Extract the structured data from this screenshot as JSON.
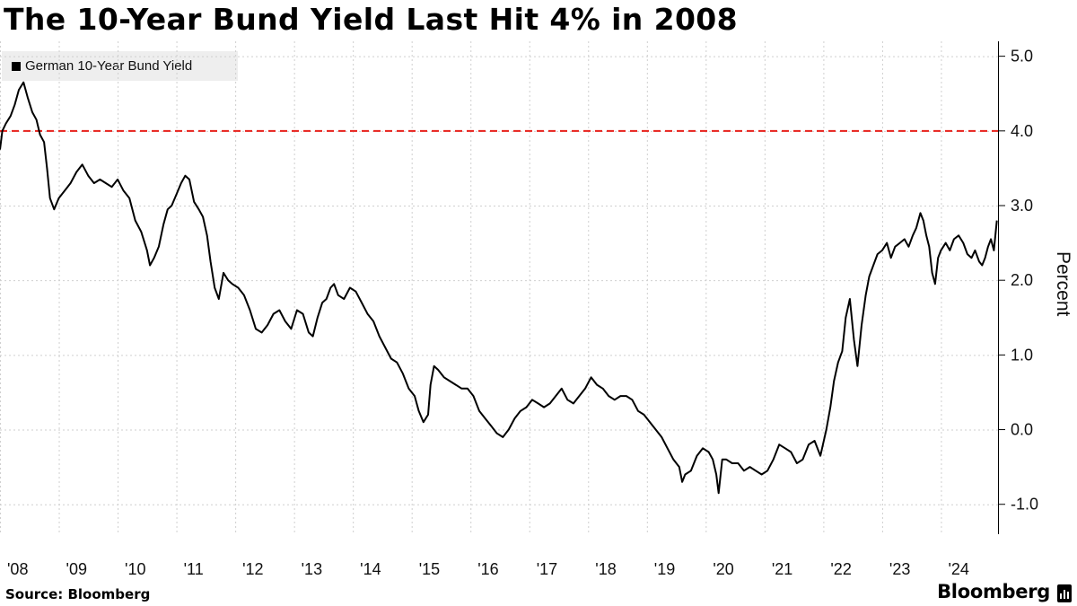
{
  "title": "The 10-Year Bund Yield Last Hit 4% in 2008",
  "legend": {
    "label": "German 10-Year Bund Yield"
  },
  "source": "Source: Bloomberg",
  "brand": "Bloomberg",
  "colors": {
    "line": "#000000",
    "reference_line": "#e8211b",
    "grid": "#cfcfcf"
  },
  "chart_data": {
    "type": "line",
    "title": "The 10-Year Bund Yield Last Hit 4% in 2008",
    "ylabel": "Percent",
    "xlabel": "",
    "ylim": [
      -1.4,
      5.2
    ],
    "yticks": [
      5,
      4,
      3,
      2,
      1,
      0,
      -1
    ],
    "ytick_labels": [
      "5.0",
      "4.0",
      "3.0",
      "2.0",
      "1.0",
      "0.0",
      "-1.0"
    ],
    "xlim": [
      2008.0,
      2024.97
    ],
    "xticks": [
      2008,
      2009,
      2010,
      2011,
      2012,
      2013,
      2014,
      2015,
      2016,
      2017,
      2018,
      2019,
      2020,
      2021,
      2022,
      2023,
      2024
    ],
    "xtick_labels": [
      "'08",
      "'09",
      "'10",
      "'11",
      "'12",
      "'13",
      "'14",
      "'15",
      "'16",
      "'17",
      "'18",
      "'19",
      "'20",
      "'21",
      "'22",
      "'23",
      "'24"
    ],
    "reference_line": {
      "y": 4.0,
      "style": "dashed"
    },
    "grid": true,
    "legend_position": "top-left",
    "series": [
      {
        "name": "German 10-Year Bund Yield",
        "x": [
          2008.0,
          2008.04,
          2008.1,
          2008.18,
          2008.25,
          2008.32,
          2008.4,
          2008.47,
          2008.55,
          2008.62,
          2008.68,
          2008.75,
          2008.8,
          2008.85,
          2008.92,
          2009.0,
          2009.1,
          2009.2,
          2009.3,
          2009.4,
          2009.5,
          2009.6,
          2009.7,
          2009.8,
          2009.9,
          2010.0,
          2010.1,
          2010.2,
          2010.3,
          2010.4,
          2010.5,
          2010.55,
          2010.62,
          2010.7,
          2010.78,
          2010.85,
          2010.92,
          2011.0,
          2011.08,
          2011.15,
          2011.22,
          2011.3,
          2011.38,
          2011.45,
          2011.52,
          2011.58,
          2011.65,
          2011.72,
          2011.8,
          2011.88,
          2011.95,
          2012.05,
          2012.15,
          2012.25,
          2012.35,
          2012.45,
          2012.55,
          2012.65,
          2012.75,
          2012.85,
          2012.95,
          2013.05,
          2013.15,
          2013.25,
          2013.32,
          2013.4,
          2013.48,
          2013.55,
          2013.62,
          2013.68,
          2013.75,
          2013.85,
          2013.95,
          2014.05,
          2014.15,
          2014.25,
          2014.35,
          2014.45,
          2014.55,
          2014.65,
          2014.75,
          2014.85,
          2014.95,
          2015.05,
          2015.12,
          2015.2,
          2015.28,
          2015.32,
          2015.38,
          2015.45,
          2015.55,
          2015.65,
          2015.75,
          2015.85,
          2015.95,
          2016.05,
          2016.15,
          2016.25,
          2016.35,
          2016.45,
          2016.55,
          2016.65,
          2016.75,
          2016.85,
          2016.95,
          2017.05,
          2017.15,
          2017.25,
          2017.35,
          2017.45,
          2017.55,
          2017.65,
          2017.75,
          2017.85,
          2017.95,
          2018.05,
          2018.15,
          2018.25,
          2018.35,
          2018.45,
          2018.55,
          2018.65,
          2018.75,
          2018.85,
          2018.95,
          2019.05,
          2019.15,
          2019.25,
          2019.35,
          2019.45,
          2019.55,
          2019.6,
          2019.65,
          2019.75,
          2019.85,
          2019.95,
          2020.05,
          2020.12,
          2020.18,
          2020.22,
          2020.28,
          2020.35,
          2020.45,
          2020.55,
          2020.65,
          2020.75,
          2020.85,
          2020.95,
          2021.05,
          2021.15,
          2021.25,
          2021.35,
          2021.45,
          2021.55,
          2021.65,
          2021.75,
          2021.85,
          2021.95,
          2022.05,
          2022.12,
          2022.18,
          2022.25,
          2022.32,
          2022.38,
          2022.45,
          2022.52,
          2022.58,
          2022.65,
          2022.72,
          2022.78,
          2022.85,
          2022.92,
          2023.0,
          2023.08,
          2023.15,
          2023.22,
          2023.3,
          2023.38,
          2023.45,
          2023.52,
          2023.58,
          2023.65,
          2023.7,
          2023.75,
          2023.8,
          2023.85,
          2023.9,
          2023.95,
          2024.0,
          2024.08,
          2024.15,
          2024.22,
          2024.3,
          2024.38,
          2024.45,
          2024.52,
          2024.58,
          2024.65,
          2024.7,
          2024.75,
          2024.8,
          2024.85,
          2024.9,
          2024.95
        ],
        "y": [
          3.75,
          4.0,
          4.1,
          4.2,
          4.35,
          4.55,
          4.65,
          4.45,
          4.25,
          4.15,
          3.95,
          3.85,
          3.5,
          3.1,
          2.95,
          3.1,
          3.2,
          3.3,
          3.45,
          3.55,
          3.4,
          3.3,
          3.35,
          3.3,
          3.25,
          3.35,
          3.2,
          3.1,
          2.8,
          2.65,
          2.4,
          2.2,
          2.3,
          2.45,
          2.75,
          2.95,
          3.0,
          3.15,
          3.3,
          3.4,
          3.35,
          3.05,
          2.95,
          2.85,
          2.6,
          2.25,
          1.9,
          1.75,
          2.1,
          2.0,
          1.95,
          1.9,
          1.8,
          1.6,
          1.35,
          1.3,
          1.4,
          1.55,
          1.6,
          1.45,
          1.35,
          1.6,
          1.55,
          1.3,
          1.25,
          1.5,
          1.7,
          1.75,
          1.9,
          1.95,
          1.8,
          1.75,
          1.9,
          1.85,
          1.7,
          1.55,
          1.45,
          1.25,
          1.1,
          0.95,
          0.9,
          0.75,
          0.55,
          0.45,
          0.25,
          0.1,
          0.2,
          0.6,
          0.85,
          0.8,
          0.7,
          0.65,
          0.6,
          0.55,
          0.55,
          0.45,
          0.25,
          0.15,
          0.05,
          -0.05,
          -0.1,
          0.0,
          0.15,
          0.25,
          0.3,
          0.4,
          0.35,
          0.3,
          0.35,
          0.45,
          0.55,
          0.4,
          0.35,
          0.45,
          0.55,
          0.7,
          0.6,
          0.55,
          0.45,
          0.4,
          0.45,
          0.45,
          0.4,
          0.25,
          0.2,
          0.1,
          0.0,
          -0.1,
          -0.25,
          -0.4,
          -0.5,
          -0.7,
          -0.6,
          -0.55,
          -0.35,
          -0.25,
          -0.3,
          -0.4,
          -0.6,
          -0.85,
          -0.4,
          -0.4,
          -0.45,
          -0.45,
          -0.55,
          -0.5,
          -0.55,
          -0.6,
          -0.55,
          -0.4,
          -0.2,
          -0.25,
          -0.3,
          -0.45,
          -0.4,
          -0.2,
          -0.15,
          -0.35,
          0.0,
          0.3,
          0.65,
          0.9,
          1.05,
          1.5,
          1.75,
          1.2,
          0.85,
          1.4,
          1.8,
          2.05,
          2.2,
          2.35,
          2.4,
          2.5,
          2.3,
          2.45,
          2.5,
          2.55,
          2.45,
          2.6,
          2.7,
          2.9,
          2.8,
          2.6,
          2.45,
          2.1,
          1.95,
          2.3,
          2.4,
          2.5,
          2.4,
          2.55,
          2.6,
          2.5,
          2.35,
          2.3,
          2.4,
          2.25,
          2.2,
          2.3,
          2.45,
          2.55,
          2.4,
          2.8
        ]
      }
    ]
  }
}
